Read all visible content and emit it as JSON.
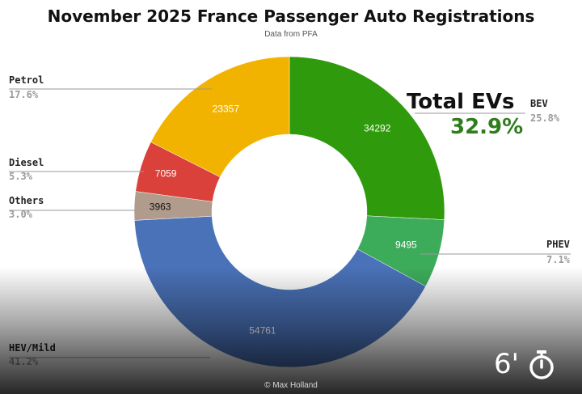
{
  "chart_data": {
    "type": "pie",
    "title": "November 2025 France Passenger Auto Registrations",
    "subtitle": "Data from PFA",
    "slices": [
      {
        "label": "BEV",
        "value": 34292,
        "percent": "25.8%",
        "color": "#2e9a0c"
      },
      {
        "label": "PHEV",
        "value": 9495,
        "percent": "7.1%",
        "color": "#3dac5a"
      },
      {
        "label": "HEV/Mild",
        "value": 54761,
        "percent": "41.2%",
        "color": "#4a72b8"
      },
      {
        "label": "Others",
        "value": 3963,
        "percent": "3.0%",
        "color": "#b09b8c"
      },
      {
        "label": "Diesel",
        "value": 7059,
        "percent": "5.3%",
        "color": "#d9413a"
      },
      {
        "label": "Petrol",
        "value": 23357,
        "percent": "17.6%",
        "color": "#f2b300"
      }
    ],
    "annotation": {
      "label": "Total EVs",
      "value": "32.9%",
      "color": "#2f7d1c"
    },
    "legend_placement": "outside labels with leader lines"
  },
  "credit": "© Max Holland",
  "video_overlay": {
    "time": "6'",
    "icon": "timer-icon"
  }
}
